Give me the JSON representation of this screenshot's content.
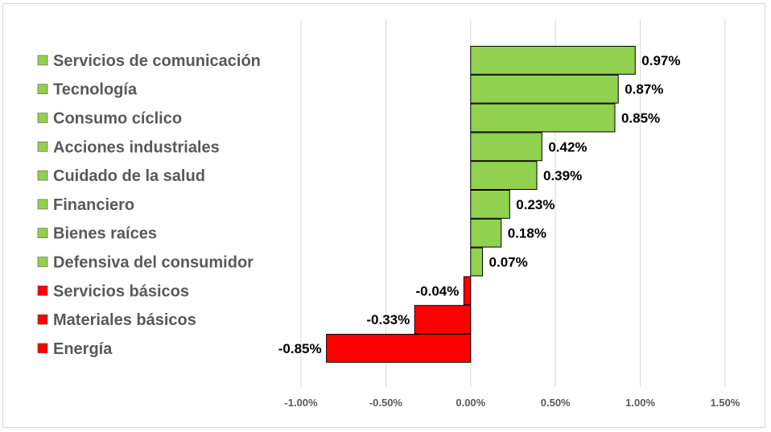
{
  "chart_data": {
    "type": "bar",
    "orientation": "horizontal",
    "title": "",
    "xlabel": "",
    "ylabel": "",
    "xlim": [
      -1.0,
      1.5
    ],
    "x_ticks": [
      -1.0,
      -0.5,
      0.0,
      0.5,
      1.0,
      1.5
    ],
    "x_tick_labels": [
      "-1.00%",
      "-0.50%",
      "0.00%",
      "0.50%",
      "1.00%",
      "1.50%"
    ],
    "grid": "vertical",
    "legend": "left",
    "categories": [
      "Servicios de comunicación",
      "Tecnología",
      "Consumo cíclico",
      "Acciones industriales",
      "Cuidado de la salud",
      "Financiero",
      "Bienes raíces",
      "Defensiva del consumidor",
      "Servicios básicos",
      "Materiales básicos",
      "Energía"
    ],
    "values": [
      0.97,
      0.87,
      0.85,
      0.42,
      0.39,
      0.23,
      0.18,
      0.07,
      -0.04,
      -0.33,
      -0.85
    ],
    "value_labels": [
      "0.97%",
      "0.87%",
      "0.85%",
      "0.42%",
      "0.39%",
      "0.23%",
      "0.18%",
      "0.07%",
      "-0.04%",
      "-0.33%",
      "-0.85%"
    ],
    "colors": {
      "positive": "#92d050",
      "negative": "#ff0000",
      "grid": "#d9d9d9",
      "bar_edge": "#000000"
    }
  }
}
